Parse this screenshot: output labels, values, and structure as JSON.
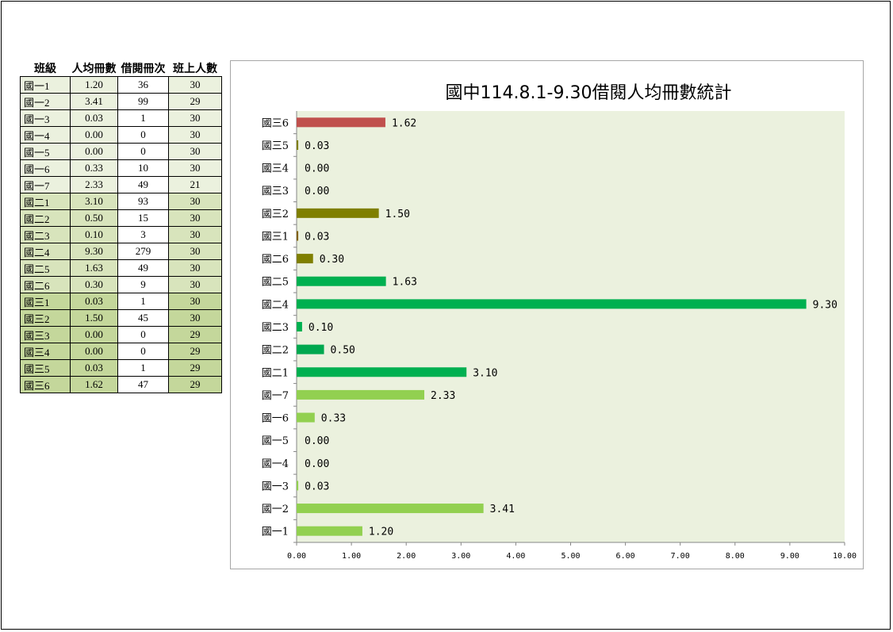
{
  "table": {
    "headers": [
      "班級",
      "人均冊數",
      "借閱冊次",
      "班上人數"
    ],
    "rows": [
      {
        "class": "國一1",
        "avg": "1.20",
        "loans": "36",
        "students": "30",
        "group": "g1"
      },
      {
        "class": "國一2",
        "avg": "3.41",
        "loans": "99",
        "students": "29",
        "group": "g1"
      },
      {
        "class": "國一3",
        "avg": "0.03",
        "loans": "1",
        "students": "30",
        "group": "g1"
      },
      {
        "class": "國一4",
        "avg": "0.00",
        "loans": "0",
        "students": "30",
        "group": "g1"
      },
      {
        "class": "國一5",
        "avg": "0.00",
        "loans": "0",
        "students": "30",
        "group": "g1"
      },
      {
        "class": "國一6",
        "avg": "0.33",
        "loans": "10",
        "students": "30",
        "group": "g1"
      },
      {
        "class": "國一7",
        "avg": "2.33",
        "loans": "49",
        "students": "21",
        "group": "g1"
      },
      {
        "class": "國二1",
        "avg": "3.10",
        "loans": "93",
        "students": "30",
        "group": "g2"
      },
      {
        "class": "國二2",
        "avg": "0.50",
        "loans": "15",
        "students": "30",
        "group": "g2"
      },
      {
        "class": "國二3",
        "avg": "0.10",
        "loans": "3",
        "students": "30",
        "group": "g2"
      },
      {
        "class": "國二4",
        "avg": "9.30",
        "loans": "279",
        "students": "30",
        "group": "g2"
      },
      {
        "class": "國二5",
        "avg": "1.63",
        "loans": "49",
        "students": "30",
        "group": "g2"
      },
      {
        "class": "國二6",
        "avg": "0.30",
        "loans": "9",
        "students": "30",
        "group": "g2"
      },
      {
        "class": "國三1",
        "avg": "0.03",
        "loans": "1",
        "students": "30",
        "group": "g3"
      },
      {
        "class": "國三2",
        "avg": "1.50",
        "loans": "45",
        "students": "30",
        "group": "g3"
      },
      {
        "class": "國三3",
        "avg": "0.00",
        "loans": "0",
        "students": "29",
        "group": "g3"
      },
      {
        "class": "國三4",
        "avg": "0.00",
        "loans": "0",
        "students": "29",
        "group": "g3"
      },
      {
        "class": "國三5",
        "avg": "0.03",
        "loans": "1",
        "students": "29",
        "group": "g3"
      },
      {
        "class": "國三6",
        "avg": "1.62",
        "loans": "47",
        "students": "29",
        "group": "g3"
      }
    ]
  },
  "chart_data": {
    "type": "bar",
    "orientation": "horizontal",
    "title": "國中114.8.1-9.30借閱人均冊數統計",
    "xlabel": "",
    "ylabel": "",
    "xlim": [
      0,
      10
    ],
    "xticks": [
      "0.00",
      "1.00",
      "2.00",
      "3.00",
      "4.00",
      "5.00",
      "6.00",
      "7.00",
      "8.00",
      "9.00",
      "10.00"
    ],
    "grid": false,
    "plot_background": "#ebf1de",
    "categories": [
      "國一1",
      "國一2",
      "國一3",
      "國一4",
      "國一5",
      "國一6",
      "國一7",
      "國二1",
      "國二2",
      "國二3",
      "國二4",
      "國二5",
      "國二6",
      "國三1",
      "國三2",
      "國三3",
      "國三4",
      "國三5",
      "國三6"
    ],
    "values": [
      1.2,
      3.41,
      0.03,
      0.0,
      0.0,
      0.33,
      2.33,
      3.1,
      0.5,
      0.1,
      9.3,
      1.63,
      0.3,
      0.03,
      1.5,
      0.0,
      0.0,
      0.03,
      1.62
    ],
    "value_labels": [
      "1.20",
      "3.41",
      "0.03",
      "0.00",
      "0.00",
      "0.33",
      "2.33",
      "3.10",
      "0.50",
      "0.10",
      "9.30",
      "1.63",
      "0.30",
      "0.03",
      "1.50",
      "0.00",
      "0.00",
      "0.03",
      "1.62"
    ],
    "bar_colors": [
      "#92d050",
      "#92d050",
      "#92d050",
      "#92d050",
      "#92d050",
      "#92d050",
      "#92d050",
      "#00b050",
      "#00a84f",
      "#00b050",
      "#00b050",
      "#00b050",
      "#7f7f00",
      "#806000",
      "#7f7f00",
      "#7f7f00",
      "#7f7f00",
      "#7f7f00",
      "#c0504d"
    ]
  }
}
